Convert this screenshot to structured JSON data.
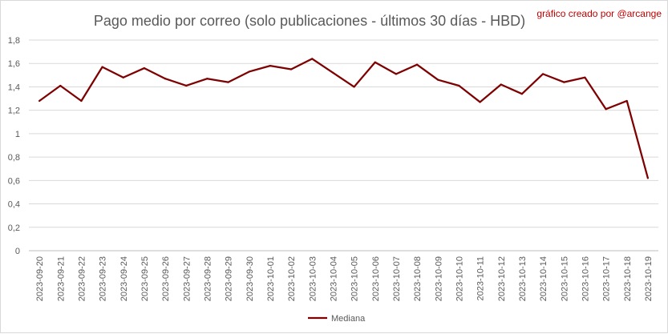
{
  "chart_data": {
    "type": "line",
    "title": "Pago medio por correo (solo publicaciones - últimos 30 días - HBD)",
    "credit": "gráfico creado por @arcange",
    "xlabel": "",
    "ylabel": "",
    "ylim": [
      0,
      1.8
    ],
    "ytick_values": [
      0,
      0.2,
      0.4,
      0.6,
      0.8,
      1,
      1.2,
      1.4,
      1.6,
      1.8
    ],
    "ytick_labels": [
      "0",
      "0,2",
      "0,4",
      "0,6",
      "0,8",
      "1",
      "1,2",
      "1,4",
      "1,6",
      "1,8"
    ],
    "grid": true,
    "legend_position": "bottom",
    "categories": [
      "2023-09-20",
      "2023-09-21",
      "2023-09-22",
      "2023-09-23",
      "2023-09-24",
      "2023-09-25",
      "2023-09-26",
      "2023-09-27",
      "2023-09-28",
      "2023-09-29",
      "2023-09-30",
      "2023-10-01",
      "2023-10-02",
      "2023-10-03",
      "2023-10-04",
      "2023-10-05",
      "2023-10-06",
      "2023-10-07",
      "2023-10-08",
      "2023-10-09",
      "2023-10-10",
      "2023-10-11",
      "2023-10-12",
      "2023-10-13",
      "2023-10-14",
      "2023-10-15",
      "2023-10-16",
      "2023-10-17",
      "2023-10-18",
      "2023-10-19"
    ],
    "series": [
      {
        "name": "Mediana",
        "color": "#7f0000",
        "values": [
          1.28,
          1.41,
          1.28,
          1.57,
          1.48,
          1.56,
          1.47,
          1.41,
          1.47,
          1.44,
          1.53,
          1.58,
          1.55,
          1.64,
          1.52,
          1.4,
          1.61,
          1.51,
          1.59,
          1.46,
          1.41,
          1.27,
          1.42,
          1.34,
          1.51,
          1.44,
          1.48,
          1.21,
          1.28,
          0.62
        ]
      }
    ]
  }
}
